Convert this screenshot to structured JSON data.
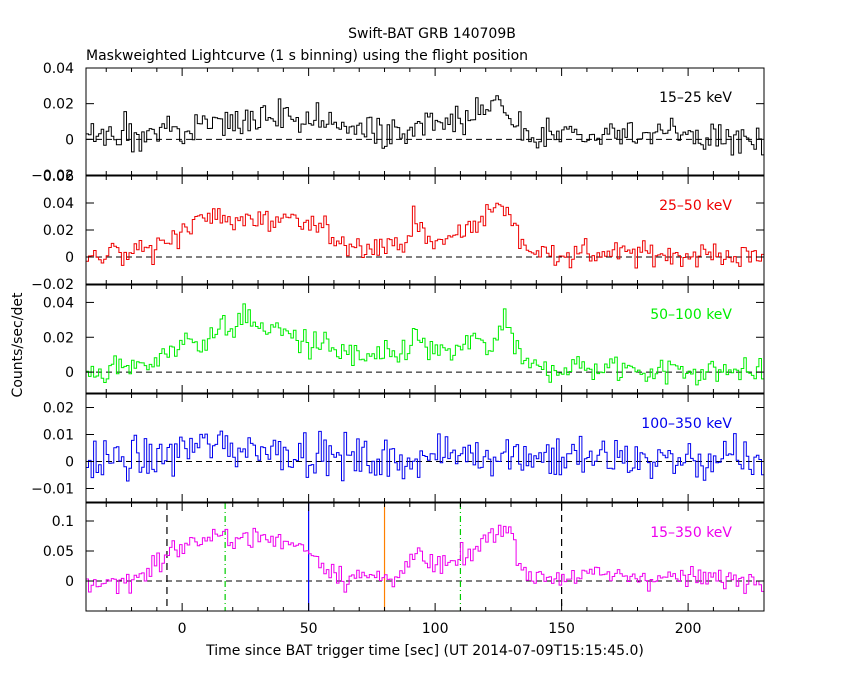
{
  "chart_data": {
    "type": "line",
    "title": "Swift-BAT GRB 140709B",
    "subtitle": "Maskweighted Lightcurve (1 s binning) using the flight position",
    "xlabel": "Time since BAT trigger time [sec] (UT 2014-07-09T15:15:45.0)",
    "ylabel": "Counts/sec/det",
    "xlim": [
      -38,
      230
    ],
    "xticks": [
      0,
      50,
      100,
      150,
      200
    ],
    "zero_line": "dashed",
    "markers": [
      {
        "x": -6,
        "style": "dashed",
        "color": "#000000",
        "panel": "15-350 keV"
      },
      {
        "x": 17,
        "style": "dash-dot",
        "color": "#00cc00",
        "panel": "15-350 keV"
      },
      {
        "x": 50,
        "style": "solid",
        "color": "#0000ff",
        "panel": "15-350 keV"
      },
      {
        "x": 80,
        "style": "solid",
        "color": "#ff8000",
        "panel": "15-350 keV"
      },
      {
        "x": 110,
        "style": "dash-dot",
        "color": "#00cc00",
        "panel": "15-350 keV"
      },
      {
        "x": 150,
        "style": "dashed",
        "color": "#000000",
        "panel": "15-350 keV"
      }
    ],
    "panels": [
      {
        "name": "15–25 keV",
        "color": "#000000",
        "ylim": [
          -0.02,
          0.04
        ],
        "yticks": [
          -0.02,
          0,
          0.02,
          0.04
        ],
        "ytick_labels": [
          "−0.02",
          "0",
          "0.02",
          "0.04"
        ],
        "noise": 0.0065,
        "segments": [
          [
            -38,
            0.0
          ],
          [
            -15,
            0.003
          ],
          [
            0,
            0.008
          ],
          [
            20,
            0.01
          ],
          [
            40,
            0.015
          ],
          [
            55,
            0.01
          ],
          [
            70,
            0.004
          ],
          [
            90,
            0.006
          ],
          [
            100,
            0.012
          ],
          [
            115,
            0.012
          ],
          [
            125,
            0.022
          ],
          [
            132,
            0.008
          ],
          [
            140,
            0.002
          ],
          [
            180,
            0.003
          ],
          [
            230,
            0.0
          ]
        ]
      },
      {
        "name": "25–50 keV",
        "color": "#ee0000",
        "ylim": [
          -0.02,
          0.06
        ],
        "yticks": [
          -0.02,
          0,
          0.02,
          0.04,
          0.06
        ],
        "ytick_labels": [
          "−0.02",
          "0",
          "0.02",
          "0.04",
          "0.06"
        ],
        "noise": 0.0065,
        "segments": [
          [
            -38,
            0.0
          ],
          [
            -15,
            0.005
          ],
          [
            0,
            0.02
          ],
          [
            10,
            0.03
          ],
          [
            25,
            0.027
          ],
          [
            45,
            0.025
          ],
          [
            55,
            0.022
          ],
          [
            65,
            0.01
          ],
          [
            80,
            0.008
          ],
          [
            88,
            0.012
          ],
          [
            92,
            0.025
          ],
          [
            98,
            0.01
          ],
          [
            108,
            0.015
          ],
          [
            118,
            0.028
          ],
          [
            125,
            0.038
          ],
          [
            130,
            0.03
          ],
          [
            135,
            0.01
          ],
          [
            140,
            0.003
          ],
          [
            200,
            0.002
          ],
          [
            230,
            0.0
          ]
        ]
      },
      {
        "name": "50–100 keV",
        "color": "#00ee00",
        "ylim": [
          -0.012,
          0.05
        ],
        "yticks": [
          0,
          0.02,
          0.04
        ],
        "ytick_labels": [
          "0",
          "0.02",
          "0.04"
        ],
        "noise": 0.0055,
        "segments": [
          [
            -38,
            0.0
          ],
          [
            -15,
            0.003
          ],
          [
            -5,
            0.013
          ],
          [
            10,
            0.02
          ],
          [
            25,
            0.03
          ],
          [
            40,
            0.022
          ],
          [
            55,
            0.015
          ],
          [
            70,
            0.008
          ],
          [
            85,
            0.008
          ],
          [
            92,
            0.02
          ],
          [
            100,
            0.01
          ],
          [
            110,
            0.012
          ],
          [
            118,
            0.022
          ],
          [
            122,
            0.01
          ],
          [
            128,
            0.03
          ],
          [
            132,
            0.012
          ],
          [
            136,
            0.003
          ],
          [
            230,
            0.0
          ]
        ]
      },
      {
        "name": "100–350 keV",
        "color": "#0000ee",
        "ylim": [
          -0.015,
          0.025
        ],
        "yticks": [
          -0.01,
          0,
          0.01,
          0.02
        ],
        "ytick_labels": [
          "−0.01",
          "0",
          "0.01",
          "0.02"
        ],
        "noise": 0.0055,
        "segments": [
          [
            -38,
            0.0
          ],
          [
            -10,
            0.001
          ],
          [
            5,
            0.006
          ],
          [
            25,
            0.005
          ],
          [
            45,
            0.004
          ],
          [
            60,
            0.002
          ],
          [
            80,
            0.0
          ],
          [
            110,
            0.003
          ],
          [
            130,
            0.003
          ],
          [
            160,
            0.001
          ],
          [
            230,
            0.0
          ]
        ]
      },
      {
        "name": "15–350 keV",
        "color": "#ee00ee",
        "ylim": [
          -0.05,
          0.13
        ],
        "yticks": [
          0,
          0.05,
          0.1
        ],
        "ytick_labels": [
          "0",
          "0.05",
          "0.1"
        ],
        "noise": 0.013,
        "segments": [
          [
            -38,
            -0.005
          ],
          [
            -20,
            0.0
          ],
          [
            -10,
            0.03
          ],
          [
            0,
            0.06
          ],
          [
            10,
            0.07
          ],
          [
            25,
            0.075
          ],
          [
            40,
            0.065
          ],
          [
            50,
            0.055
          ],
          [
            55,
            0.03
          ],
          [
            65,
            0.005
          ],
          [
            80,
            0.008
          ],
          [
            88,
            0.015
          ],
          [
            93,
            0.045
          ],
          [
            98,
            0.025
          ],
          [
            110,
            0.03
          ],
          [
            118,
            0.06
          ],
          [
            125,
            0.09
          ],
          [
            130,
            0.08
          ],
          [
            135,
            0.02
          ],
          [
            140,
            0.005
          ],
          [
            160,
            0.01
          ],
          [
            200,
            0.005
          ],
          [
            230,
            0.002
          ]
        ]
      }
    ]
  }
}
